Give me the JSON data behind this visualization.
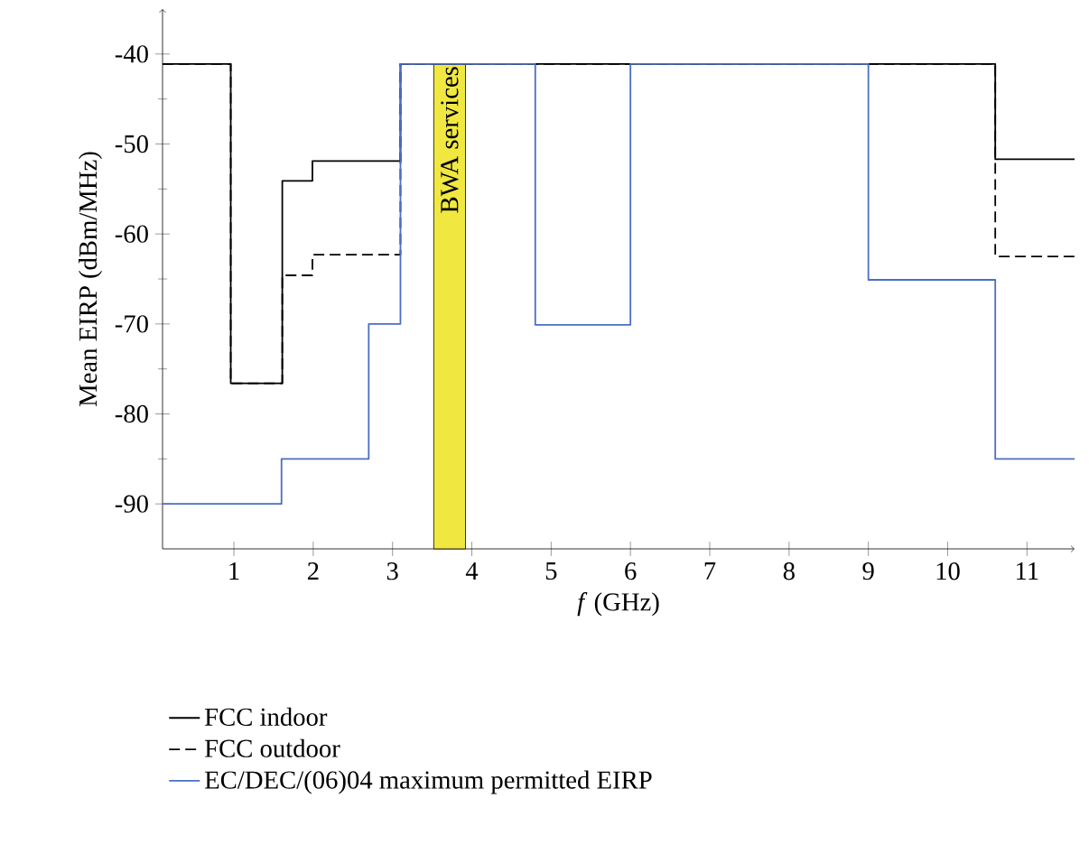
{
  "chart_data": {
    "type": "step",
    "xlabel": "*f* (GHz)",
    "ylabel": "Mean EIRP (dBm/MHz)",
    "xlim": [
      0.1,
      11.6
    ],
    "ylim": [
      -95,
      -35
    ],
    "xticks": [
      1,
      2,
      3,
      4,
      5,
      6,
      7,
      8,
      9,
      10,
      11
    ],
    "yticks": [
      -90,
      -80,
      -70,
      -60,
      -50,
      -40
    ],
    "legend": "bottom",
    "grid": false,
    "marker": "none",
    "bands": [
      {
        "axis": "x",
        "from": 3.52,
        "to": 3.92,
        "label": "BWA services",
        "color": "#f0e840"
      }
    ],
    "series": [
      {
        "name": "FCC indoor",
        "color": "#000000",
        "line_style": "solid",
        "x": [
          0.1,
          0.96,
          1.61,
          1.99,
          3.1,
          10.6,
          11.6
        ],
        "values": [
          -41.1,
          -76.6,
          -54.1,
          -51.9,
          -41.1,
          -51.7,
          -51.7
        ]
      },
      {
        "name": "FCC outdoor",
        "color": "#000000",
        "line_style": "dashed",
        "x": [
          0.1,
          0.96,
          1.61,
          1.99,
          3.1,
          10.6,
          11.6
        ],
        "values": [
          -41.1,
          -76.6,
          -64.6,
          -62.3,
          -41.1,
          -62.5,
          -62.5
        ]
      },
      {
        "name": "EC/DEC/(06)04 maximum permitted EIRP",
        "color": "#4a6fc0",
        "line_style": "solid",
        "x": [
          0.1,
          1.6,
          2.7,
          3.1,
          4.8,
          6.0,
          9.0,
          10.6,
          11.6
        ],
        "values": [
          -90,
          -85,
          -70,
          -41.1,
          -70.1,
          -41.1,
          -65.1,
          -85,
          -85
        ]
      }
    ]
  }
}
